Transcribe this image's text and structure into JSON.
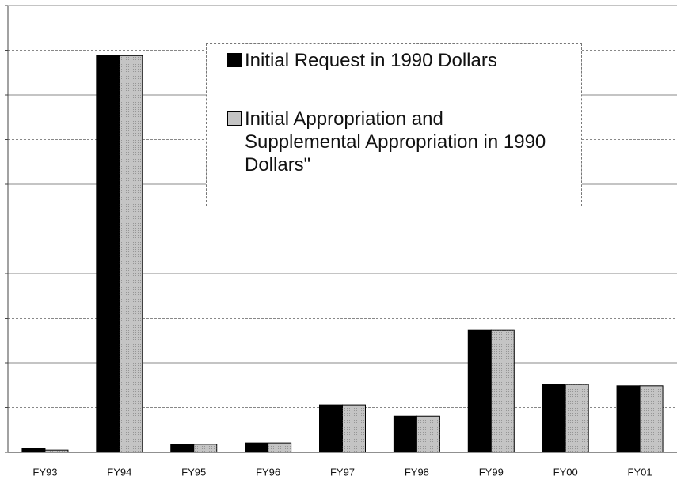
{
  "chart_data": {
    "type": "bar",
    "categories": [
      "FY93",
      "FY94",
      "FY95",
      "FY96",
      "FY97",
      "FY98",
      "FY99",
      "FY00",
      "FY01"
    ],
    "series": [
      {
        "name": "Initial Request in 1990 Dollars",
        "color": "#000000",
        "values": [
          0.09,
          8.88,
          0.18,
          0.21,
          1.06,
          0.81,
          2.74,
          1.52,
          1.49
        ]
      },
      {
        "name": "Initial Appropriation and Supplemental Appropriation in 1990 Dollars\"",
        "color": "#c4c4c4",
        "values": [
          0.05,
          8.88,
          0.18,
          0.21,
          1.06,
          0.81,
          2.74,
          1.52,
          1.49
        ]
      }
    ],
    "ylim": [
      0,
      10
    ],
    "yticks": [
      0,
      1,
      2,
      3,
      4,
      5,
      6,
      7,
      8,
      9,
      10
    ],
    "grid": true
  }
}
